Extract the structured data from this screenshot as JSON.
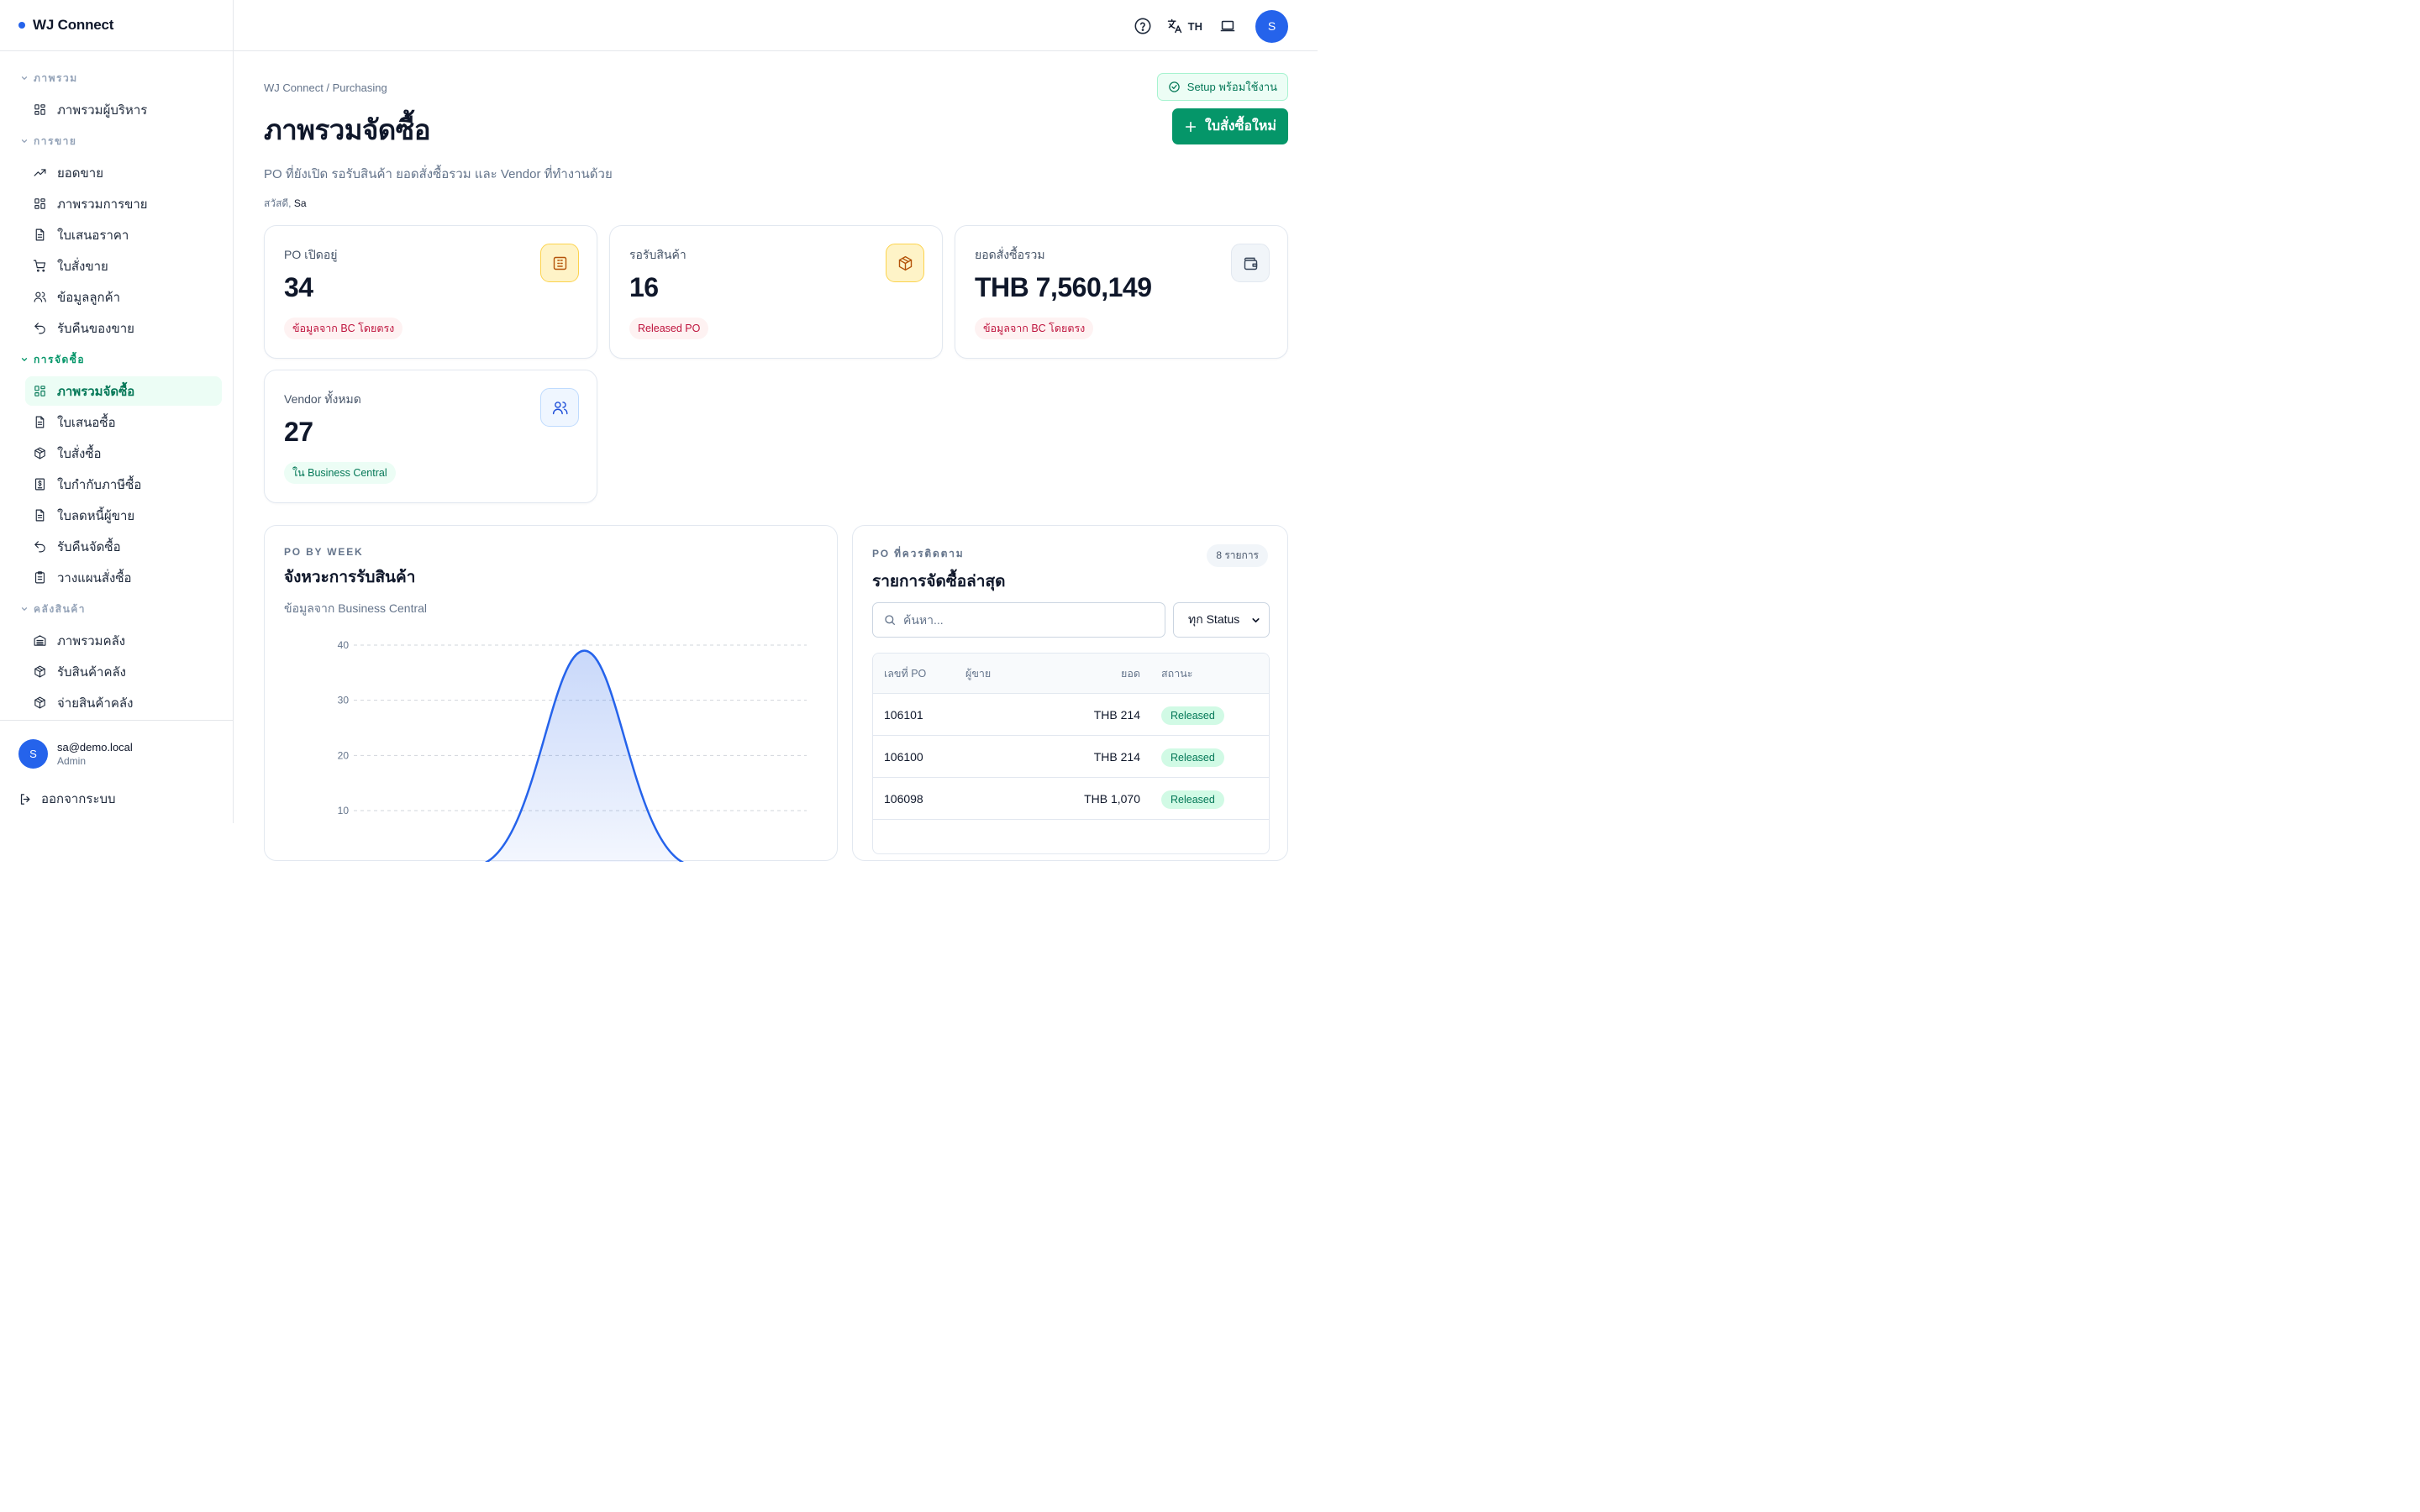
{
  "app": {
    "brand": "WJ Connect"
  },
  "sidebar": {
    "sections": [
      {
        "title": "ภาพรวม",
        "items": [
          {
            "label": "ภาพรวมผู้บริหาร",
            "icon": "grid-icon"
          }
        ]
      },
      {
        "title": "การขาย",
        "items": [
          {
            "label": "ยอดขาย",
            "icon": "trend-icon"
          },
          {
            "label": "ภาพรวมการขาย",
            "icon": "grid-icon"
          },
          {
            "label": "ใบเสนอราคา",
            "icon": "document-icon"
          },
          {
            "label": "ใบสั่งขาย",
            "icon": "cart-icon"
          },
          {
            "label": "ข้อมูลลูกค้า",
            "icon": "users-icon"
          },
          {
            "label": "รับคืนของขาย",
            "icon": "return-icon"
          }
        ]
      },
      {
        "title": "การจัดซื้อ",
        "items": [
          {
            "label": "ภาพรวมจัดซื้อ",
            "icon": "grid-icon",
            "active": true
          },
          {
            "label": "ใบเสนอซื้อ",
            "icon": "document-icon"
          },
          {
            "label": "ใบสั่งซื้อ",
            "icon": "package-icon"
          },
          {
            "label": "ใบกำกับภาษีซื้อ",
            "icon": "receipt-icon"
          },
          {
            "label": "ใบลดหนี้ผู้ขาย",
            "icon": "document-icon"
          },
          {
            "label": "รับคืนจัดซื้อ",
            "icon": "return-icon"
          },
          {
            "label": "วางแผนสั่งซื้อ",
            "icon": "clipboard-icon"
          }
        ]
      },
      {
        "title": "คลังสินค้า",
        "items": [
          {
            "label": "ภาพรวมคลัง",
            "icon": "warehouse-icon"
          },
          {
            "label": "รับสินค้าคลัง",
            "icon": "package-icon"
          },
          {
            "label": "จ่ายสินค้าคลัง",
            "icon": "package-icon"
          }
        ]
      }
    ],
    "user": {
      "initial": "S",
      "email": "sa@demo.local",
      "role": "Admin"
    },
    "logout_label": "ออกจากระบบ"
  },
  "topbar": {
    "lang_code": "TH",
    "avatar_initial": "S"
  },
  "header": {
    "breadcrumb": "WJ Connect / Purchasing",
    "title": "ภาพรวมจัดซื้อ",
    "subtitle": "PO ที่ยังเปิด รอรับสินค้า ยอดสั่งซื้อรวม และ Vendor ที่ทำงานด้วย",
    "greeting_prefix": "สวัสดี,",
    "greeting_name": "Sa",
    "setup_badge": "Setup พร้อมใช้งาน",
    "new_button": "ใบสั่งซื้อใหม่"
  },
  "kpis": [
    {
      "label": "PO เปิดอยู่",
      "value": "34",
      "tag": "ข้อมูลจาก BC โดยตรง",
      "tag_color": "red",
      "icon": "building-icon",
      "icon_style": "amber"
    },
    {
      "label": "รอรับสินค้า",
      "value": "16",
      "tag": "Released PO",
      "tag_color": "red",
      "icon": "box-icon",
      "icon_style": "amber"
    },
    {
      "label": "ยอดสั่งซื้อรวม",
      "value": "THB 7,560,149",
      "tag": "ข้อมูลจาก BC โดยตรง",
      "tag_color": "red",
      "icon": "wallet-icon",
      "icon_style": "slate"
    },
    {
      "label": "Vendor ทั้งหมด",
      "value": "27",
      "tag": "ใน Business Central",
      "tag_color": "green",
      "icon": "users-icon",
      "icon_style": "blue"
    }
  ],
  "chart_panel": {
    "eyebrow": "PO BY WEEK",
    "title": "จังหวะการรับสินค้า",
    "subtitle": "ข้อมูลจาก Business Central"
  },
  "chart_data": {
    "type": "area",
    "ylim": [
      0,
      40
    ],
    "yticks": [
      10,
      20,
      30,
      40
    ],
    "grid": true,
    "series": [
      {
        "values": [
          0,
          0,
          39,
          0,
          0
        ]
      }
    ],
    "color": "#2563eb"
  },
  "list_panel": {
    "eyebrow": "PO ที่ควรติดตาม",
    "title": "รายการจัดซื้อล่าสุด",
    "count": "8 รายการ",
    "search_placeholder": "ค้นหา...",
    "status_filter": "ทุก Status",
    "columns": [
      "เลขที่ PO",
      "ผู้ขาย",
      "ยอด",
      "สถานะ"
    ],
    "rows": [
      {
        "po": "106101",
        "vendor": "",
        "amount": "THB 214",
        "status": "Released"
      },
      {
        "po": "106100",
        "vendor": "",
        "amount": "THB 214",
        "status": "Released"
      },
      {
        "po": "106098",
        "vendor": "",
        "amount": "THB 1,070",
        "status": "Released"
      }
    ]
  }
}
